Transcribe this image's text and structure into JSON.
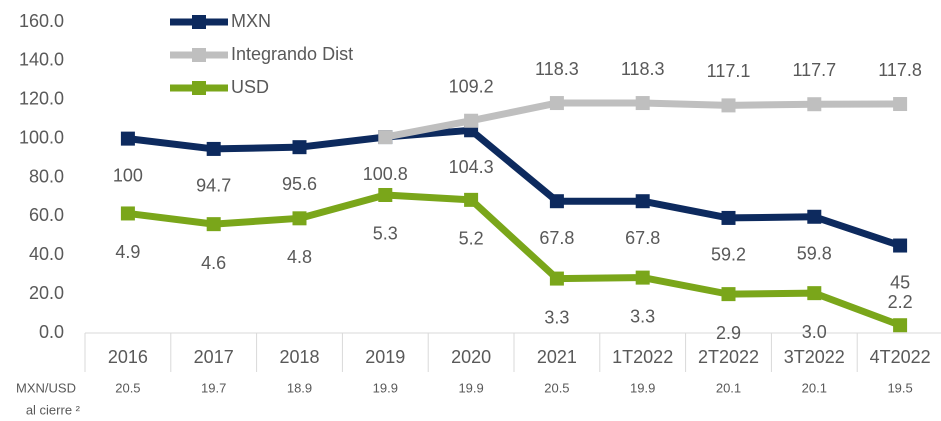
{
  "chart_data": {
    "type": "line",
    "categories": [
      "2016",
      "2017",
      "2018",
      "2019",
      "2020",
      "2021",
      "1T2022",
      "2T2022",
      "3T2022",
      "4T2022"
    ],
    "series": [
      {
        "name": "MXN",
        "color": "#0d2a5e",
        "values": [
          100.0,
          94.7,
          95.6,
          100.8,
          104.3,
          67.8,
          67.8,
          59.2,
          59.8,
          45.0
        ]
      },
      {
        "name": "Integrando Dist",
        "color": "#bfbfbf",
        "values": [
          null,
          null,
          null,
          100.8,
          109.2,
          118.3,
          118.3,
          117.1,
          117.7,
          117.8
        ]
      },
      {
        "name": "USD",
        "color": "#7aa61a",
        "values": [
          61.5,
          56,
          59,
          71,
          68.5,
          28,
          28.5,
          20,
          20.5,
          4
        ],
        "labels": [
          "4.9",
          "4.6",
          "4.8",
          "5.3",
          "5.2",
          "3.3",
          "3.3",
          "2.9",
          "3.0",
          "2.2"
        ]
      }
    ],
    "ylim": [
      0,
      160
    ],
    "yticks": [
      {
        "value": 0,
        "label": "0.0"
      },
      {
        "value": 20,
        "label": "20.0"
      },
      {
        "value": 40,
        "label": "40.0"
      },
      {
        "value": 60,
        "label": "60.0"
      },
      {
        "value": 80,
        "label": "80.0"
      },
      {
        "value": 100,
        "label": "100.0"
      },
      {
        "value": 120,
        "label": "120.0"
      },
      {
        "value": 140,
        "label": "140.0"
      },
      {
        "value": 160,
        "label": "160.0"
      }
    ],
    "legend": "top-left",
    "exchange_rate": {
      "label_lines": [
        "MXN/USD",
        "al cierre ²"
      ],
      "values": [
        "20.5",
        "19.7",
        "18.9",
        "19.9",
        "19.9",
        "20.5",
        "19.9",
        "20.1",
        "20.1",
        "19.5"
      ]
    }
  }
}
